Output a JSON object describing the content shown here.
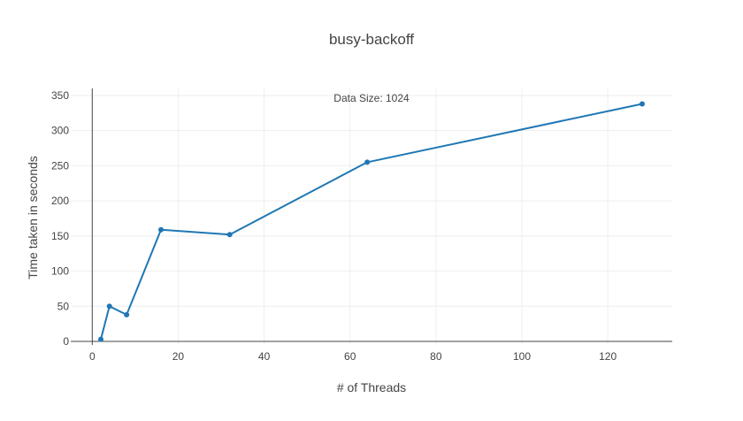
{
  "chart_data": {
    "type": "line",
    "title": "busy-backoff",
    "xlabel": "# of Threads",
    "ylabel": "Time taken in seconds",
    "annotation": "Data Size: 1024",
    "xlim": [
      -5,
      135
    ],
    "ylim": [
      -5,
      360
    ],
    "x_ticks": [
      0,
      20,
      40,
      60,
      80,
      100,
      120
    ],
    "y_ticks": [
      0,
      50,
      100,
      150,
      200,
      250,
      300,
      350
    ],
    "grid": true,
    "legend": "none",
    "colors": {
      "line": "#1f77b4",
      "grid": "#eeeeee",
      "axis": "#444444"
    },
    "series": [
      {
        "x": [
          2,
          4,
          8,
          16,
          32,
          64,
          128
        ],
        "y": [
          3,
          50,
          38,
          159,
          152,
          255,
          338
        ]
      }
    ]
  }
}
